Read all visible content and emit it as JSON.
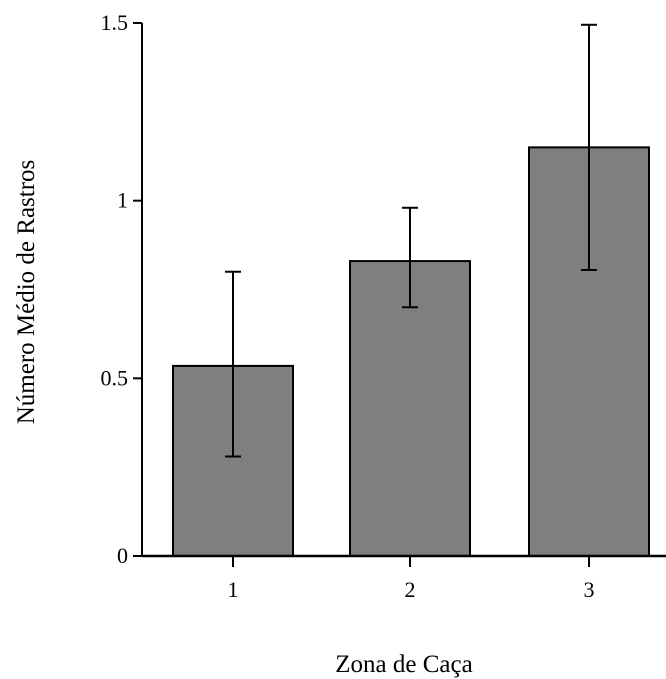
{
  "chart_data": {
    "type": "bar",
    "categories": [
      "1",
      "2",
      "3"
    ],
    "values": [
      0.535,
      0.83,
      1.15
    ],
    "error_low": [
      0.28,
      0.7,
      0.805
    ],
    "error_high": [
      0.8,
      0.98,
      1.495
    ],
    "title": "",
    "xlabel": "Zona de Caça",
    "ylabel": "Número Médio de Rastros",
    "ylim": [
      0,
      1.5
    ],
    "yticks": [
      0,
      0.5,
      1,
      1.5
    ],
    "ytick_labels": [
      "0",
      "0.5",
      "1",
      "1.5"
    ],
    "grid": false,
    "legend": "none",
    "colors": {
      "bar": "#7f7f7f",
      "edge": "#000000",
      "axis": "#000000"
    }
  }
}
